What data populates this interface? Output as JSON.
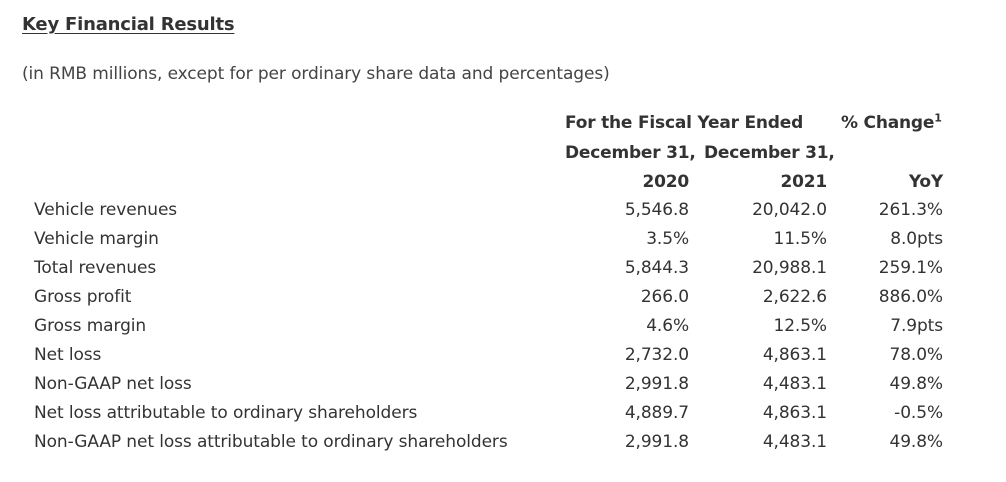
{
  "title": "Key Financial Results",
  "subtitle": "(in RMB millions, except for per ordinary share data and percentages)",
  "header": {
    "fiscal_year_line1": "For the Fiscal Year Ended",
    "col1_date": "December 31,",
    "col2_date": "December 31,",
    "col1_year": "2020",
    "col2_year": "2021",
    "change_label": "% Change",
    "change_footnote": "1",
    "change_sub": "YoY"
  },
  "rows": [
    {
      "label": "Vehicle revenues",
      "v2020": "5,546.8",
      "v2021": "20,042.0",
      "change": "261.3%"
    },
    {
      "label": "Vehicle margin",
      "v2020": "3.5%",
      "v2021": "11.5%",
      "change": "8.0pts"
    },
    {
      "label": "Total revenues",
      "v2020": "5,844.3",
      "v2021": "20,988.1",
      "change": "259.1%"
    },
    {
      "label": "Gross profit",
      "v2020": "266.0",
      "v2021": "2,622.6",
      "change": "886.0%"
    },
    {
      "label": "Gross margin",
      "v2020": "4.6%",
      "v2021": "12.5%",
      "change": "7.9pts"
    },
    {
      "label": "Net loss",
      "v2020": "2,732.0",
      "v2021": "4,863.1",
      "change": "78.0%"
    },
    {
      "label": "Non-GAAP net loss",
      "v2020": "2,991.8",
      "v2021": "4,483.1",
      "change": "49.8%"
    },
    {
      "label": "Net loss attributable to ordinary shareholders",
      "v2020": "4,889.7",
      "v2021": "4,863.1",
      "change": "-0.5%"
    },
    {
      "label": "Non-GAAP net loss attributable to ordinary shareholders",
      "v2020": "2,991.8",
      "v2021": "4,483.1",
      "change": "49.8%"
    }
  ]
}
